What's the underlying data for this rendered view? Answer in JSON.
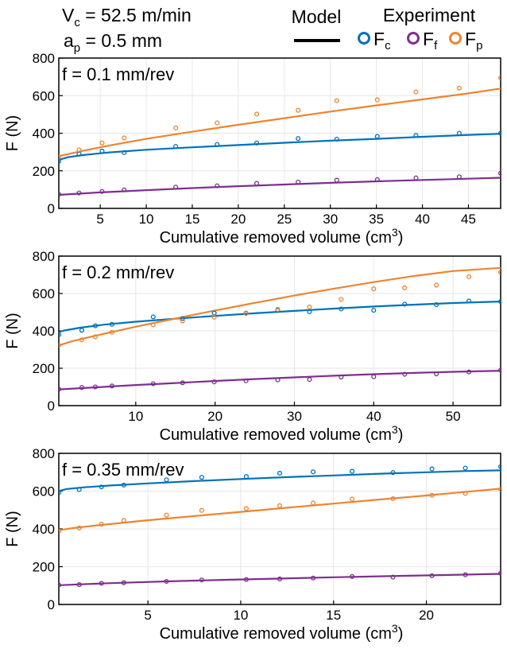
{
  "header": {
    "vc_label": "V",
    "vc_sub": "c",
    "vc_value": " = 52.5 m/min",
    "ap_label": "a",
    "ap_sub": "p",
    "ap_value": " = 0.5 mm",
    "model_label": "Model",
    "experiment_label": "Experiment",
    "legend": [
      {
        "base": "F",
        "sub": "c",
        "color": "#0072BD"
      },
      {
        "base": "F",
        "sub": "f",
        "color": "#7E2F8E"
      },
      {
        "base": "F",
        "sub": "p",
        "color": "#EE8430"
      }
    ]
  },
  "colors": {
    "Fc": "#0072BD",
    "Ff": "#7E2F8E",
    "Fp": "#EE8430"
  },
  "chart_data": [
    {
      "type": "line",
      "panel_title": "f = 0.1 mm/rev",
      "xlabel": "Cumulative removed volume (cm",
      "xlabel_sup": "3",
      "xlabel_end": ")",
      "ylabel": "F (N)",
      "xlim": [
        0.5,
        48.5
      ],
      "ylim": [
        0,
        800
      ],
      "xticks": [
        5,
        10,
        15,
        20,
        25,
        30,
        35,
        40,
        45
      ],
      "yticks": [
        0,
        200,
        400,
        600,
        800
      ],
      "grid": true,
      "model": [
        {
          "name": "Fc",
          "curve": [
            [
              0.5,
              258
            ],
            [
              1.5,
              272
            ],
            [
              3,
              283
            ],
            [
              6,
              298
            ],
            [
              10,
              312
            ],
            [
              15,
              325
            ],
            [
              20,
              337
            ],
            [
              25,
              349
            ],
            [
              30,
              360
            ],
            [
              35,
              370
            ],
            [
              40,
              381
            ],
            [
              45,
              391
            ],
            [
              48.5,
              397
            ]
          ]
        },
        {
          "name": "Ff",
          "curve": [
            [
              0.5,
              72
            ],
            [
              5,
              85
            ],
            [
              10,
              97
            ],
            [
              15,
              108
            ],
            [
              20,
              118
            ],
            [
              25,
              127
            ],
            [
              30,
              136
            ],
            [
              35,
              144
            ],
            [
              40,
              151
            ],
            [
              45,
              158
            ],
            [
              48.5,
              163
            ]
          ]
        },
        {
          "name": "Fp",
          "curve": [
            [
              0.5,
              278
            ],
            [
              3,
              305
            ],
            [
              6,
              335
            ],
            [
              10,
              370
            ],
            [
              15,
              408
            ],
            [
              20,
              445
            ],
            [
              25,
              480
            ],
            [
              30,
              515
            ],
            [
              35,
              548
            ],
            [
              40,
              580
            ],
            [
              45,
              612
            ],
            [
              48.5,
              638
            ]
          ]
        }
      ],
      "experiment": [
        {
          "name": "Fc",
          "x": [
            0.5,
            2.7,
            5.2,
            7.6,
            13.2,
            17.7,
            22,
            26.5,
            30.7,
            35.1,
            39.3,
            44,
            48.5
          ],
          "y": [
            250,
            290,
            305,
            297,
            330,
            340,
            348,
            372,
            368,
            383,
            388,
            400,
            400
          ]
        },
        {
          "name": "Ff",
          "x": [
            0.5,
            2.7,
            5.2,
            7.6,
            13.2,
            17.7,
            22,
            26.5,
            30.7,
            35.1,
            39.3,
            44,
            48.5
          ],
          "y": [
            75,
            82,
            90,
            98,
            113,
            120,
            133,
            140,
            150,
            153,
            162,
            168,
            187
          ]
        },
        {
          "name": "Fp",
          "x": [
            0.5,
            2.7,
            5.2,
            7.6,
            13.2,
            17.7,
            22,
            26.5,
            30.7,
            35.1,
            39.3,
            44,
            48.5
          ],
          "y": [
            275,
            312,
            348,
            375,
            428,
            455,
            502,
            522,
            573,
            578,
            620,
            640,
            695
          ]
        }
      ]
    },
    {
      "type": "line",
      "panel_title": "f = 0.2 mm/rev",
      "xlabel": "Cumulative removed volume (cm",
      "xlabel_sup": "3",
      "xlabel_end": ")",
      "ylabel": "F (N)",
      "xlim": [
        0.3,
        56
      ],
      "ylim": [
        0,
        800
      ],
      "xticks": [
        10,
        20,
        30,
        40,
        50
      ],
      "yticks": [
        0,
        200,
        400,
        600,
        800
      ],
      "grid": true,
      "model": [
        {
          "name": "Fc",
          "curve": [
            [
              0.3,
              393
            ],
            [
              1,
              402
            ],
            [
              3,
              417
            ],
            [
              6,
              433
            ],
            [
              10,
              449
            ],
            [
              15,
              465
            ],
            [
              20,
              480
            ],
            [
              25,
              494
            ],
            [
              30,
              507
            ],
            [
              35,
              519
            ],
            [
              40,
              530
            ],
            [
              45,
              540
            ],
            [
              50,
              549
            ],
            [
              56,
              557
            ]
          ]
        },
        {
          "name": "Ff",
          "curve": [
            [
              0.3,
              87
            ],
            [
              5,
              98
            ],
            [
              10,
              110
            ],
            [
              15,
              121
            ],
            [
              20,
              132
            ],
            [
              25,
              142
            ],
            [
              30,
              151
            ],
            [
              35,
              160
            ],
            [
              40,
              168
            ],
            [
              45,
              175
            ],
            [
              50,
              181
            ],
            [
              56,
              187
            ]
          ]
        },
        {
          "name": "Fp",
          "curve": [
            [
              0.3,
              322
            ],
            [
              2,
              345
            ],
            [
              5,
              375
            ],
            [
              10,
              422
            ],
            [
              15,
              466
            ],
            [
              20,
              509
            ],
            [
              25,
              550
            ],
            [
              30,
              589
            ],
            [
              35,
              626
            ],
            [
              40,
              661
            ],
            [
              45,
              693
            ],
            [
              50,
              720
            ],
            [
              56,
              737
            ]
          ]
        }
      ],
      "experiment": [
        {
          "name": "Fc",
          "x": [
            0.3,
            3.2,
            4.9,
            7,
            12.2,
            15.9,
            19.9,
            23.9,
            27.9,
            31.9,
            35.9,
            40,
            43.9,
            47.9,
            52,
            56
          ],
          "y": [
            380,
            403,
            427,
            435,
            475,
            465,
            495,
            495,
            510,
            502,
            517,
            510,
            543,
            540,
            560,
            557
          ]
        },
        {
          "name": "Ff",
          "x": [
            0.3,
            3.2,
            4.9,
            7,
            12.2,
            15.9,
            19.9,
            23.9,
            27.9,
            31.9,
            35.9,
            40,
            43.9,
            47.9,
            52,
            56
          ],
          "y": [
            88,
            97,
            100,
            105,
            117,
            122,
            127,
            133,
            138,
            140,
            153,
            155,
            168,
            170,
            180,
            190
          ]
        },
        {
          "name": "Fp",
          "x": [
            0.3,
            3.2,
            4.9,
            7,
            12.2,
            15.9,
            19.9,
            23.9,
            27.9,
            31.9,
            35.9,
            40,
            43.9,
            47.9,
            52,
            56
          ],
          "y": [
            323,
            352,
            368,
            392,
            432,
            453,
            473,
            493,
            515,
            528,
            568,
            625,
            630,
            645,
            690,
            713
          ]
        }
      ]
    },
    {
      "type": "line",
      "panel_title": "f = 0.35 mm/rev",
      "xlabel": "Cumulative removed volume (cm",
      "xlabel_sup": "3",
      "xlabel_end": ")",
      "ylabel": "F (N)",
      "xlim": [
        0.2,
        24
      ],
      "ylim": [
        0,
        800
      ],
      "xticks": [
        5,
        10,
        15,
        20
      ],
      "yticks": [
        0,
        200,
        400,
        600,
        800
      ],
      "grid": true,
      "model": [
        {
          "name": "Fc",
          "curve": [
            [
              0.2,
              600
            ],
            [
              0.6,
              611
            ],
            [
              1.5,
              620
            ],
            [
              3,
              630
            ],
            [
              5,
              641
            ],
            [
              7.5,
              653
            ],
            [
              10,
              664
            ],
            [
              12.5,
              674
            ],
            [
              15,
              683
            ],
            [
              17.5,
              692
            ],
            [
              20,
              700
            ],
            [
              22,
              706
            ],
            [
              24,
              710
            ]
          ]
        },
        {
          "name": "Ff",
          "curve": [
            [
              0.2,
              102
            ],
            [
              3,
              113
            ],
            [
              6,
              122
            ],
            [
              9,
              130
            ],
            [
              12,
              137
            ],
            [
              15,
              144
            ],
            [
              18,
              150
            ],
            [
              21,
              156
            ],
            [
              24,
              162
            ]
          ]
        },
        {
          "name": "Fp",
          "curve": [
            [
              0.2,
              393
            ],
            [
              1,
              405
            ],
            [
              2.5,
              421
            ],
            [
              5,
              446
            ],
            [
              7.5,
              468
            ],
            [
              10,
              490
            ],
            [
              12.5,
              512
            ],
            [
              15,
              534
            ],
            [
              17.5,
              556
            ],
            [
              20,
              577
            ],
            [
              22,
              595
            ],
            [
              24,
              613
            ]
          ]
        }
      ],
      "experiment": [
        {
          "name": "Fc",
          "x": [
            0.2,
            1.3,
            2.5,
            3.7,
            6,
            7.9,
            10.3,
            12.1,
            13.9,
            16,
            18.2,
            20.3,
            22.1,
            24
          ],
          "y": [
            593,
            608,
            622,
            632,
            660,
            673,
            677,
            695,
            702,
            705,
            698,
            718,
            722,
            730
          ]
        },
        {
          "name": "Ff",
          "x": [
            0.2,
            1.3,
            2.5,
            3.7,
            6,
            7.9,
            10.3,
            12.1,
            13.9,
            16,
            18.2,
            20.3,
            22.1,
            24
          ],
          "y": [
            103,
            105,
            112,
            115,
            122,
            130,
            132,
            135,
            140,
            148,
            145,
            152,
            157,
            165
          ]
        },
        {
          "name": "Fp",
          "x": [
            0.2,
            1.3,
            2.5,
            3.7,
            6,
            7.9,
            10.3,
            12.1,
            13.9,
            16,
            18.2,
            20.3,
            22.1,
            24
          ],
          "y": [
            388,
            405,
            425,
            445,
            473,
            498,
            508,
            523,
            537,
            558,
            560,
            578,
            588,
            610
          ]
        }
      ]
    }
  ]
}
